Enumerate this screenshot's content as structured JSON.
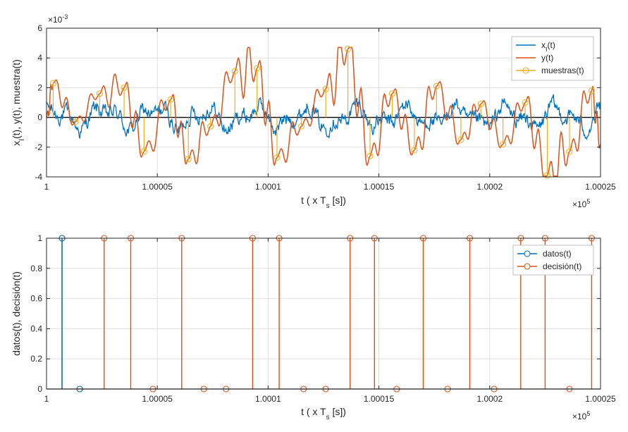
{
  "chart_data": [
    {
      "type": "line",
      "title": "",
      "xlabel": "t ( x T_s [s])",
      "ylabel": "x_I(t), y(t), muestra(t)",
      "y_exponent": "×10^-3",
      "x_exponent": "×10^5",
      "xlim": [
        1.0,
        1.00025
      ],
      "ylim": [
        -4,
        6
      ],
      "x_tick_values": [
        1.0,
        1.00005,
        1.0001,
        1.00015,
        1.0002,
        1.00025
      ],
      "x_tick_labels": [
        "1",
        "1.00005",
        "1.0001",
        "1.00015",
        "1.0002",
        "1.00025"
      ],
      "y_tick_values": [
        -4,
        -2,
        0,
        2,
        4,
        6
      ],
      "y_tick_labels": [
        "-4",
        "-2",
        "0",
        "2",
        "4",
        "6"
      ],
      "grid": true,
      "legend_position": "top-right",
      "colors": {
        "xI": "#0072bd",
        "y": "#d95319",
        "muestras": "#edb120",
        "zero": "#000000",
        "grid": "#dfdfdf",
        "axis": "#262626"
      },
      "series": [
        {
          "name": "x_I(t)",
          "legend_main": "x",
          "legend_sub": "I",
          "legend_rest": "(t)",
          "color": "#0072bd",
          "kind": "line"
        },
        {
          "name": "y(t)",
          "legend_main": "y(t)",
          "legend_sub": "",
          "legend_rest": "",
          "color": "#d95319",
          "kind": "line"
        },
        {
          "name": "muestras(t)",
          "legend_main": "muestras(t)",
          "legend_sub": "",
          "legend_rest": "",
          "color": "#edb120",
          "kind": "stem"
        }
      ],
      "sample_x": [
        1.000003,
        1.000013,
        1.000024,
        1.000035,
        1.000044,
        1.000056,
        1.000064,
        1.000074,
        1.000085,
        1.000095,
        1.000104,
        1.000115,
        1.000126,
        1.000136,
        1.000146,
        1.000156,
        1.000166,
        1.000176,
        1.000187,
        1.000196,
        1.000206,
        1.000216,
        1.000226,
        1.000236,
        1.000246
      ],
      "sample_y": [
        2.3,
        -0.3,
        1.6,
        2.0,
        -2.3,
        1.2,
        -2.8,
        -0.6,
        3.1,
        3.3,
        -2.7,
        -0.6,
        1.9,
        4.6,
        -2.6,
        1.6,
        -2.2,
        2.1,
        -1.5,
        0.9,
        -1.8,
        1.0,
        -3.9,
        -2.3,
        1.8
      ]
    },
    {
      "type": "stem",
      "title": "",
      "xlabel": "t ( x T_s [s])",
      "ylabel": "datos(t), decisión(t)",
      "x_exponent": "×10^5",
      "xlim": [
        1.0,
        1.00025
      ],
      "ylim": [
        0,
        1
      ],
      "x_tick_values": [
        1.0,
        1.00005,
        1.0001,
        1.00015,
        1.0002,
        1.00025
      ],
      "x_tick_labels": [
        "1",
        "1.00005",
        "1.0001",
        "1.00015",
        "1.0002",
        "1.00025"
      ],
      "y_tick_values": [
        0,
        0.2,
        0.4,
        0.6,
        0.8,
        1.0
      ],
      "y_tick_labels": [
        "0",
        "0.2",
        "0.4",
        "0.6",
        "0.8",
        "1"
      ],
      "grid": true,
      "legend_position": "top-right",
      "series": [
        {
          "name": "datos(t)",
          "color": "#0072bd",
          "x": [
            1.000007,
            1.000015
          ],
          "values": [
            1,
            0
          ]
        },
        {
          "name": "decisión(t)",
          "color": "#d95319",
          "x": [
            1.000007,
            1.000015,
            1.000026,
            1.000038,
            1.000048,
            1.000061,
            1.000071,
            1.000081,
            1.000093,
            1.000105,
            1.000116,
            1.000126,
            1.000137,
            1.000148,
            1.000158,
            1.00017,
            1.000181,
            1.000191,
            1.000202,
            1.000214,
            1.000225,
            1.000236,
            1.000246
          ],
          "values": [
            1,
            0,
            1,
            1,
            0,
            1,
            0,
            0,
            1,
            1,
            0,
            0,
            1,
            1,
            0,
            1,
            0,
            1,
            0,
            1,
            1,
            0,
            1
          ]
        }
      ]
    }
  ]
}
